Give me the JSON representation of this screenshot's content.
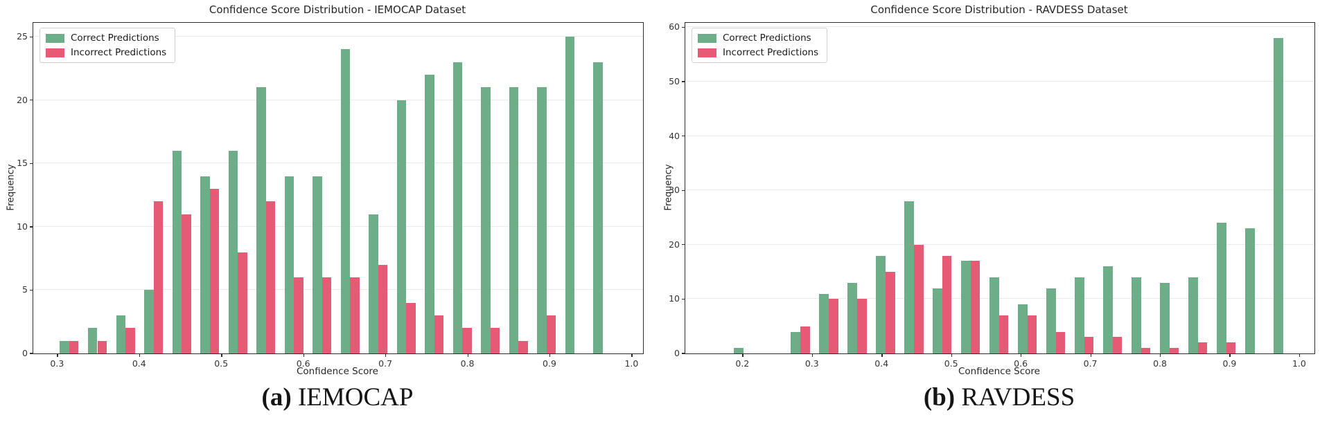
{
  "page_background": "#ffffff",
  "colors": {
    "correct": "#6dae89",
    "incorrect": "#e65a76",
    "spine": "#2e2e2e",
    "grid": "#eaeaea"
  },
  "captions": [
    {
      "marker": "(a)",
      "label": "IEMOCAP"
    },
    {
      "marker": "(b)",
      "label": "RAVDESS"
    }
  ],
  "chart_data": [
    {
      "type": "bar",
      "title": "Confidence Score Distribution - IEMOCAP Dataset",
      "xlabel": "Confidence Score",
      "ylabel": "Frequency",
      "grid": "horizontal",
      "legend_position": "upper left",
      "xlim": [
        0.271,
        1.014
      ],
      "ylim": [
        0,
        26.1
      ],
      "xticks": [
        0.3,
        0.4,
        0.5,
        0.6,
        0.7,
        0.8,
        0.9,
        1.0
      ],
      "yticks": [
        0,
        5,
        10,
        15,
        20,
        25
      ],
      "bin_start": 0.3035,
      "bin_width": 0.0342,
      "bin_centers": [
        0.32,
        0.355,
        0.389,
        0.423,
        0.457,
        0.492,
        0.526,
        0.56,
        0.594,
        0.629,
        0.663,
        0.697,
        0.731,
        0.766,
        0.8,
        0.834,
        0.868,
        0.903,
        0.937,
        0.971
      ],
      "series": [
        {
          "name": "Correct Predictions",
          "values": [
            1,
            2,
            3,
            5,
            16,
            14,
            16,
            21,
            14,
            14,
            24,
            11,
            20,
            22,
            23,
            21,
            21,
            21,
            25,
            23
          ]
        },
        {
          "name": "Incorrect Predictions",
          "values": [
            1,
            1,
            2,
            12,
            11,
            13,
            8,
            12,
            6,
            6,
            6,
            7,
            4,
            3,
            2,
            2,
            1,
            3,
            0,
            0
          ]
        }
      ]
    },
    {
      "type": "bar",
      "title": "Confidence Score Distribution - RAVDESS Dataset",
      "xlabel": "Confidence Score",
      "ylabel": "Frequency",
      "grid": "horizontal",
      "legend_position": "upper left",
      "xlim": [
        0.118,
        1.022
      ],
      "ylim": [
        0,
        60.8
      ],
      "xticks": [
        0.2,
        0.3,
        0.4,
        0.5,
        0.6,
        0.7,
        0.8,
        0.9,
        1.0
      ],
      "yticks": [
        0,
        10,
        20,
        30,
        40,
        50,
        60
      ],
      "bin_start": 0.188,
      "bin_width": 0.0408,
      "bin_centers": [
        0.2,
        0.241,
        0.282,
        0.322,
        0.363,
        0.404,
        0.445,
        0.485,
        0.526,
        0.567,
        0.607,
        0.648,
        0.689,
        0.729,
        0.77,
        0.811,
        0.851,
        0.892,
        0.933,
        0.973
      ],
      "series": [
        {
          "name": "Correct Predictions",
          "values": [
            1,
            0,
            4,
            11,
            13,
            18,
            28,
            12,
            17,
            14,
            9,
            12,
            14,
            16,
            14,
            13,
            14,
            24,
            23,
            58
          ]
        },
        {
          "name": "Incorrect Predictions",
          "values": [
            0,
            0,
            5,
            10,
            10,
            15,
            20,
            18,
            17,
            7,
            7,
            4,
            3,
            3,
            1,
            1,
            2,
            2,
            0,
            0
          ]
        }
      ]
    }
  ]
}
